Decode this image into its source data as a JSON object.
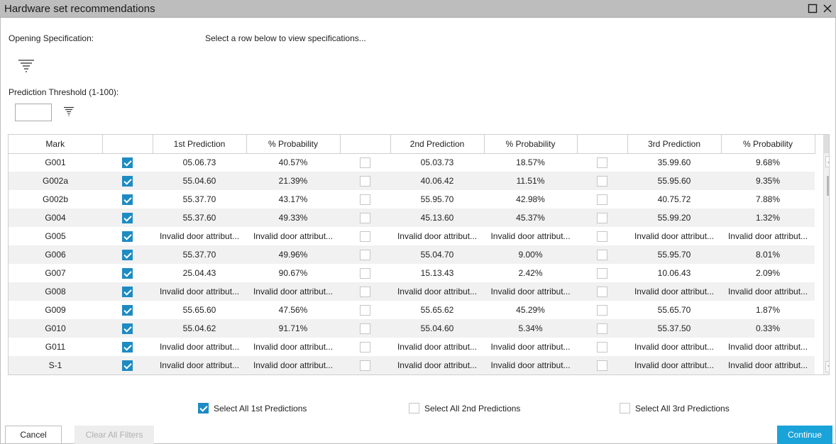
{
  "window": {
    "title": "Hardware set recommendations",
    "maximize_icon": "maximize-icon",
    "close_icon": "close-icon"
  },
  "opening_spec": {
    "label": "Opening Specification:",
    "hint": "Select a row below to view specifications..."
  },
  "threshold": {
    "label": "Prediction Threshold (1-100):",
    "value": ""
  },
  "columns": [
    "Mark",
    "",
    "1st Prediction",
    "% Probability",
    "",
    "2nd Prediction",
    "% Probability",
    "",
    "3rd Prediction",
    "% Probability"
  ],
  "rows": [
    {
      "mark": "G001",
      "c1": true,
      "p1": "05.06.73",
      "pr1": "40.57%",
      "c2": false,
      "p2": "05.03.73",
      "pr2": "18.57%",
      "c3": false,
      "p3": "35.99.60",
      "pr3": "9.68%"
    },
    {
      "mark": "G002a",
      "c1": true,
      "p1": "55.04.60",
      "pr1": "21.39%",
      "c2": false,
      "p2": "40.06.42",
      "pr2": "11.51%",
      "c3": false,
      "p3": "55.95.60",
      "pr3": "9.35%"
    },
    {
      "mark": "G002b",
      "c1": true,
      "p1": "55.37.70",
      "pr1": "43.17%",
      "c2": false,
      "p2": "55.95.70",
      "pr2": "42.98%",
      "c3": false,
      "p3": "40.75.72",
      "pr3": "7.88%"
    },
    {
      "mark": "G004",
      "c1": true,
      "p1": "55.37.60",
      "pr1": "49.33%",
      "c2": false,
      "p2": "45.13.60",
      "pr2": "45.37%",
      "c3": false,
      "p3": "55.99.20",
      "pr3": "1.32%"
    },
    {
      "mark": "G005",
      "c1": true,
      "p1": "Invalid door attribut...",
      "pr1": "Invalid door attribut...",
      "c2": false,
      "p2": "Invalid door attribut...",
      "pr2": "Invalid door attribut...",
      "c3": false,
      "p3": "Invalid door attribut...",
      "pr3": "Invalid door attribut..."
    },
    {
      "mark": "G006",
      "c1": true,
      "p1": "55.37.70",
      "pr1": "49.96%",
      "c2": false,
      "p2": "55.04.70",
      "pr2": "9.00%",
      "c3": false,
      "p3": "55.95.70",
      "pr3": "8.01%"
    },
    {
      "mark": "G007",
      "c1": true,
      "p1": "25.04.43",
      "pr1": "90.67%",
      "c2": false,
      "p2": "15.13.43",
      "pr2": "2.42%",
      "c3": false,
      "p3": "10.06.43",
      "pr3": "2.09%"
    },
    {
      "mark": "G008",
      "c1": true,
      "p1": "Invalid door attribut...",
      "pr1": "Invalid door attribut...",
      "c2": false,
      "p2": "Invalid door attribut...",
      "pr2": "Invalid door attribut...",
      "c3": false,
      "p3": "Invalid door attribut...",
      "pr3": "Invalid door attribut..."
    },
    {
      "mark": "G009",
      "c1": true,
      "p1": "55.65.60",
      "pr1": "47.56%",
      "c2": false,
      "p2": "55.65.62",
      "pr2": "45.29%",
      "c3": false,
      "p3": "55.65.70",
      "pr3": "1.87%"
    },
    {
      "mark": "G010",
      "c1": true,
      "p1": "55.04.62",
      "pr1": "91.71%",
      "c2": false,
      "p2": "55.04.60",
      "pr2": "5.34%",
      "c3": false,
      "p3": "55.37.50",
      "pr3": "0.33%"
    },
    {
      "mark": "G011",
      "c1": true,
      "p1": "Invalid door attribut...",
      "pr1": "Invalid door attribut...",
      "c2": false,
      "p2": "Invalid door attribut...",
      "pr2": "Invalid door attribut...",
      "c3": false,
      "p3": "Invalid door attribut...",
      "pr3": "Invalid door attribut..."
    },
    {
      "mark": "S-1",
      "c1": true,
      "p1": "Invalid door attribut...",
      "pr1": "Invalid door attribut...",
      "c2": false,
      "p2": "Invalid door attribut...",
      "pr2": "Invalid door attribut...",
      "c3": false,
      "p3": "Invalid door attribut...",
      "pr3": "Invalid door attribut..."
    }
  ],
  "select_all": [
    {
      "label": "Select All 1st Predictions",
      "checked": true
    },
    {
      "label": "Select All 2nd Predictions",
      "checked": false
    },
    {
      "label": "Select All 3rd Predictions",
      "checked": false
    }
  ],
  "buttons": {
    "cancel": "Cancel",
    "clear_filters": "Clear All Filters",
    "continue": "Continue"
  },
  "colors": {
    "accent": "#1e8bc3",
    "continue_bg": "#1aa3d9",
    "titlebar": "#bdbdbd",
    "row_alt": "#f1f1f1"
  },
  "icons": {
    "filter": "filter-icon",
    "scroll_up": "chevron-up-icon",
    "scroll_down": "chevron-down-icon"
  }
}
